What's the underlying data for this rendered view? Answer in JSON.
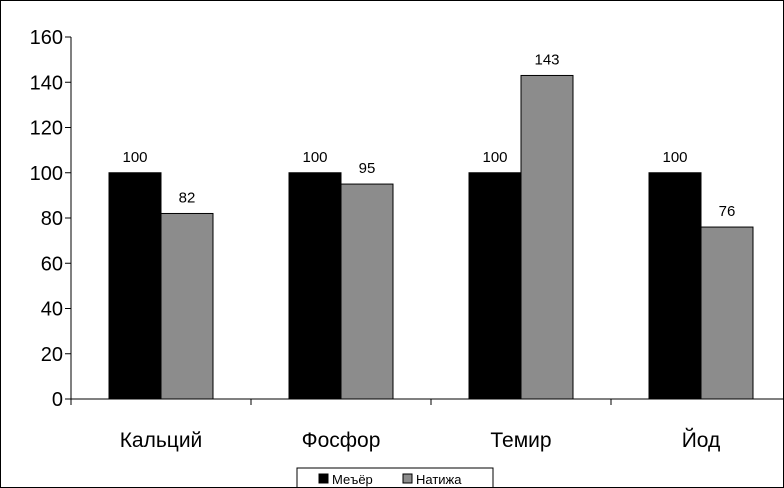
{
  "chart_data": {
    "type": "bar",
    "categories": [
      "Кальций",
      "Фосфор",
      "Темир",
      "Йод"
    ],
    "series": [
      {
        "name": "Меъёр",
        "values": [
          100,
          100,
          100,
          100
        ],
        "color": "#000000"
      },
      {
        "name": "Натижа",
        "values": [
          82,
          95,
          143,
          76
        ],
        "color": "#8c8c8c"
      }
    ],
    "title": "",
    "xlabel": "",
    "ylabel": "",
    "ylim": [
      0,
      160
    ],
    "yticks": [
      0,
      20,
      40,
      60,
      80,
      100,
      120,
      140,
      160
    ],
    "grid": false,
    "data_labels": true,
    "legend_position": "bottom-center"
  }
}
